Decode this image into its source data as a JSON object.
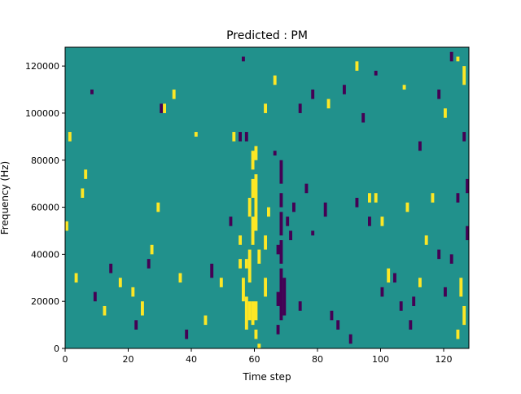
{
  "chart_data": {
    "type": "heatmap",
    "title": "Predicted : PM",
    "xlabel": "Time step",
    "ylabel": "Frequency (Hz)",
    "xlim": [
      0,
      128
    ],
    "ylim": [
      0,
      128000
    ],
    "x_ticks": [
      {
        "value": 0,
        "label": "0"
      },
      {
        "value": 20,
        "label": "20"
      },
      {
        "value": 40,
        "label": "40"
      },
      {
        "value": 60,
        "label": "60"
      },
      {
        "value": 80,
        "label": "80"
      },
      {
        "value": 100,
        "label": "100"
      },
      {
        "value": 120,
        "label": "120"
      }
    ],
    "y_ticks": [
      {
        "value": 0,
        "label": "0"
      },
      {
        "value": 20000,
        "label": "20000"
      },
      {
        "value": 40000,
        "label": "40000"
      },
      {
        "value": 60000,
        "label": "60000"
      },
      {
        "value": 80000,
        "label": "80000"
      },
      {
        "value": 100000,
        "label": "100000"
      },
      {
        "value": 120000,
        "label": "120000"
      }
    ],
    "colormap": "viridis",
    "colors": {
      "background": "#21918c",
      "high": "#fde725",
      "low": "#440154"
    },
    "background_level": "mid",
    "cells": [
      {
        "t": 57,
        "f0": 8000,
        "f1": 22000,
        "level": "high"
      },
      {
        "t": 58,
        "f0": 12000,
        "f1": 20000,
        "level": "high"
      },
      {
        "t": 59,
        "f0": 10000,
        "f1": 20000,
        "level": "high"
      },
      {
        "t": 60,
        "f0": 12000,
        "f1": 20000,
        "level": "high"
      },
      {
        "t": 57,
        "f0": 34000,
        "f1": 38000,
        "level": "high"
      },
      {
        "t": 58,
        "f0": 28000,
        "f1": 42000,
        "level": "high"
      },
      {
        "t": 59,
        "f0": 44000,
        "f1": 56000,
        "level": "high"
      },
      {
        "t": 60,
        "f0": 50000,
        "f1": 74000,
        "level": "high"
      },
      {
        "t": 59,
        "f0": 64000,
        "f1": 72000,
        "level": "high"
      },
      {
        "t": 58,
        "f0": 56000,
        "f1": 64000,
        "level": "high"
      },
      {
        "t": 59,
        "f0": 76000,
        "f1": 84000,
        "level": "high"
      },
      {
        "t": 60,
        "f0": 80000,
        "f1": 86000,
        "level": "high"
      },
      {
        "t": 61,
        "f0": 36000,
        "f1": 42000,
        "level": "high"
      },
      {
        "t": 61,
        "f0": 0,
        "f1": 2000,
        "level": "high"
      },
      {
        "t": 60,
        "f0": 4000,
        "f1": 8000,
        "level": "high"
      },
      {
        "t": 56,
        "f0": 20000,
        "f1": 30000,
        "level": "high"
      },
      {
        "t": 55,
        "f0": 34000,
        "f1": 38000,
        "level": "high"
      },
      {
        "t": 55,
        "f0": 44000,
        "f1": 48000,
        "level": "high"
      },
      {
        "t": 63,
        "f0": 22000,
        "f1": 30000,
        "level": "high"
      },
      {
        "t": 63,
        "f0": 42000,
        "f1": 48000,
        "level": "high"
      },
      {
        "t": 64,
        "f0": 56000,
        "f1": 60000,
        "level": "high"
      },
      {
        "t": 68,
        "f0": 12000,
        "f1": 34000,
        "level": "low"
      },
      {
        "t": 69,
        "f0": 14000,
        "f1": 30000,
        "level": "low"
      },
      {
        "t": 68,
        "f0": 36000,
        "f1": 46000,
        "level": "low"
      },
      {
        "t": 68,
        "f0": 48000,
        "f1": 58000,
        "level": "low"
      },
      {
        "t": 68,
        "f0": 60000,
        "f1": 66000,
        "level": "low"
      },
      {
        "t": 68,
        "f0": 70000,
        "f1": 80000,
        "level": "low"
      },
      {
        "t": 67,
        "f0": 18000,
        "f1": 24000,
        "level": "low"
      },
      {
        "t": 67,
        "f0": 6000,
        "f1": 10000,
        "level": "low"
      },
      {
        "t": 67,
        "f0": 40000,
        "f1": 44000,
        "level": "low"
      },
      {
        "t": 66,
        "f0": 82000,
        "f1": 84000,
        "level": "low"
      },
      {
        "t": 57,
        "f0": 88000,
        "f1": 92000,
        "level": "low"
      },
      {
        "t": 70,
        "f0": 52000,
        "f1": 56000,
        "level": "low"
      },
      {
        "t": 71,
        "f0": 46000,
        "f1": 50000,
        "level": "low"
      },
      {
        "t": 72,
        "f0": 58000,
        "f1": 62000,
        "level": "low"
      },
      {
        "t": 76,
        "f0": 66000,
        "f1": 70000,
        "level": "low"
      },
      {
        "t": 74,
        "f0": 16000,
        "f1": 20000,
        "level": "low"
      },
      {
        "t": 78,
        "f0": 48000,
        "f1": 50000,
        "level": "low"
      },
      {
        "t": 82,
        "f0": 56000,
        "f1": 62000,
        "level": "low"
      },
      {
        "t": 84,
        "f0": 12000,
        "f1": 16000,
        "level": "low"
      },
      {
        "t": 86,
        "f0": 8000,
        "f1": 12000,
        "level": "low"
      },
      {
        "t": 90,
        "f0": 2000,
        "f1": 6000,
        "level": "low"
      },
      {
        "t": 92,
        "f0": 60000,
        "f1": 64000,
        "level": "low"
      },
      {
        "t": 96,
        "f0": 52000,
        "f1": 56000,
        "level": "low"
      },
      {
        "t": 100,
        "f0": 22000,
        "f1": 26000,
        "level": "low"
      },
      {
        "t": 104,
        "f0": 28000,
        "f1": 32000,
        "level": "low"
      },
      {
        "t": 106,
        "f0": 16000,
        "f1": 20000,
        "level": "low"
      },
      {
        "t": 109,
        "f0": 8000,
        "f1": 12000,
        "level": "low"
      },
      {
        "t": 110,
        "f0": 18000,
        "f1": 22000,
        "level": "low"
      },
      {
        "t": 120,
        "f0": 22000,
        "f1": 26000,
        "level": "low"
      },
      {
        "t": 122,
        "f0": 36000,
        "f1": 40000,
        "level": "low"
      },
      {
        "t": 124,
        "f0": 62000,
        "f1": 66000,
        "level": "low"
      },
      {
        "t": 127,
        "f0": 66000,
        "f1": 72000,
        "level": "low"
      },
      {
        "t": 127,
        "f0": 46000,
        "f1": 52000,
        "level": "low"
      },
      {
        "t": 126,
        "f0": 88000,
        "f1": 92000,
        "level": "low"
      },
      {
        "t": 118,
        "f0": 106000,
        "f1": 110000,
        "level": "low"
      },
      {
        "t": 122,
        "f0": 122000,
        "f1": 126000,
        "level": "low"
      },
      {
        "t": 96,
        "f0": 62000,
        "f1": 66000,
        "level": "high"
      },
      {
        "t": 98,
        "f0": 62000,
        "f1": 66000,
        "level": "high"
      },
      {
        "t": 100,
        "f0": 52000,
        "f1": 56000,
        "level": "high"
      },
      {
        "t": 102,
        "f0": 28000,
        "f1": 34000,
        "level": "high"
      },
      {
        "t": 108,
        "f0": 58000,
        "f1": 62000,
        "level": "high"
      },
      {
        "t": 112,
        "f0": 26000,
        "f1": 30000,
        "level": "high"
      },
      {
        "t": 126,
        "f0": 10000,
        "f1": 18000,
        "level": "high"
      },
      {
        "t": 125,
        "f0": 22000,
        "f1": 30000,
        "level": "high"
      },
      {
        "t": 124,
        "f0": 122000,
        "f1": 124000,
        "level": "high"
      },
      {
        "t": 126,
        "f0": 112000,
        "f1": 120000,
        "level": "high"
      },
      {
        "t": 120,
        "f0": 98000,
        "f1": 102000,
        "level": "high"
      },
      {
        "t": 124,
        "f0": 4000,
        "f1": 8000,
        "level": "high"
      },
      {
        "t": 5,
        "f0": 64000,
        "f1": 68000,
        "level": "high"
      },
      {
        "t": 0,
        "f0": 50000,
        "f1": 54000,
        "level": "high"
      },
      {
        "t": 1,
        "f0": 88000,
        "f1": 92000,
        "level": "high"
      },
      {
        "t": 3,
        "f0": 28000,
        "f1": 32000,
        "level": "high"
      },
      {
        "t": 6,
        "f0": 72000,
        "f1": 76000,
        "level": "high"
      },
      {
        "t": 8,
        "f0": 108000,
        "f1": 110000,
        "level": "low"
      },
      {
        "t": 9,
        "f0": 20000,
        "f1": 24000,
        "level": "low"
      },
      {
        "t": 12,
        "f0": 14000,
        "f1": 18000,
        "level": "high"
      },
      {
        "t": 14,
        "f0": 32000,
        "f1": 36000,
        "level": "low"
      },
      {
        "t": 17,
        "f0": 26000,
        "f1": 30000,
        "level": "high"
      },
      {
        "t": 21,
        "f0": 22000,
        "f1": 26000,
        "level": "high"
      },
      {
        "t": 22,
        "f0": 8000,
        "f1": 12000,
        "level": "low"
      },
      {
        "t": 24,
        "f0": 14000,
        "f1": 20000,
        "level": "high"
      },
      {
        "t": 26,
        "f0": 34000,
        "f1": 38000,
        "level": "low"
      },
      {
        "t": 27,
        "f0": 40000,
        "f1": 44000,
        "level": "high"
      },
      {
        "t": 29,
        "f0": 58000,
        "f1": 62000,
        "level": "high"
      },
      {
        "t": 30,
        "f0": 100000,
        "f1": 104000,
        "level": "low"
      },
      {
        "t": 31,
        "f0": 100000,
        "f1": 104000,
        "level": "high"
      },
      {
        "t": 34,
        "f0": 106000,
        "f1": 110000,
        "level": "high"
      },
      {
        "t": 36,
        "f0": 28000,
        "f1": 32000,
        "level": "high"
      },
      {
        "t": 38,
        "f0": 4000,
        "f1": 8000,
        "level": "low"
      },
      {
        "t": 41,
        "f0": 90000,
        "f1": 92000,
        "level": "high"
      },
      {
        "t": 44,
        "f0": 10000,
        "f1": 14000,
        "level": "high"
      },
      {
        "t": 46,
        "f0": 30000,
        "f1": 36000,
        "level": "low"
      },
      {
        "t": 49,
        "f0": 26000,
        "f1": 30000,
        "level": "high"
      },
      {
        "t": 52,
        "f0": 52000,
        "f1": 56000,
        "level": "low"
      },
      {
        "t": 53,
        "f0": 88000,
        "f1": 92000,
        "level": "high"
      },
      {
        "t": 55,
        "f0": 88000,
        "f1": 92000,
        "level": "low"
      },
      {
        "t": 56,
        "f0": 122000,
        "f1": 124000,
        "level": "low"
      },
      {
        "t": 63,
        "f0": 100000,
        "f1": 104000,
        "level": "high"
      },
      {
        "t": 66,
        "f0": 112000,
        "f1": 116000,
        "level": "high"
      },
      {
        "t": 74,
        "f0": 100000,
        "f1": 104000,
        "level": "low"
      },
      {
        "t": 78,
        "f0": 106000,
        "f1": 110000,
        "level": "low"
      },
      {
        "t": 83,
        "f0": 102000,
        "f1": 106000,
        "level": "high"
      },
      {
        "t": 88,
        "f0": 108000,
        "f1": 112000,
        "level": "low"
      },
      {
        "t": 92,
        "f0": 118000,
        "f1": 122000,
        "level": "high"
      },
      {
        "t": 94,
        "f0": 96000,
        "f1": 100000,
        "level": "low"
      },
      {
        "t": 98,
        "f0": 116000,
        "f1": 118000,
        "level": "low"
      },
      {
        "t": 107,
        "f0": 110000,
        "f1": 112000,
        "level": "high"
      },
      {
        "t": 112,
        "f0": 84000,
        "f1": 88000,
        "level": "low"
      },
      {
        "t": 116,
        "f0": 62000,
        "f1": 66000,
        "level": "high"
      },
      {
        "t": 114,
        "f0": 44000,
        "f1": 48000,
        "level": "high"
      },
      {
        "t": 118,
        "f0": 38000,
        "f1": 42000,
        "level": "low"
      }
    ]
  }
}
